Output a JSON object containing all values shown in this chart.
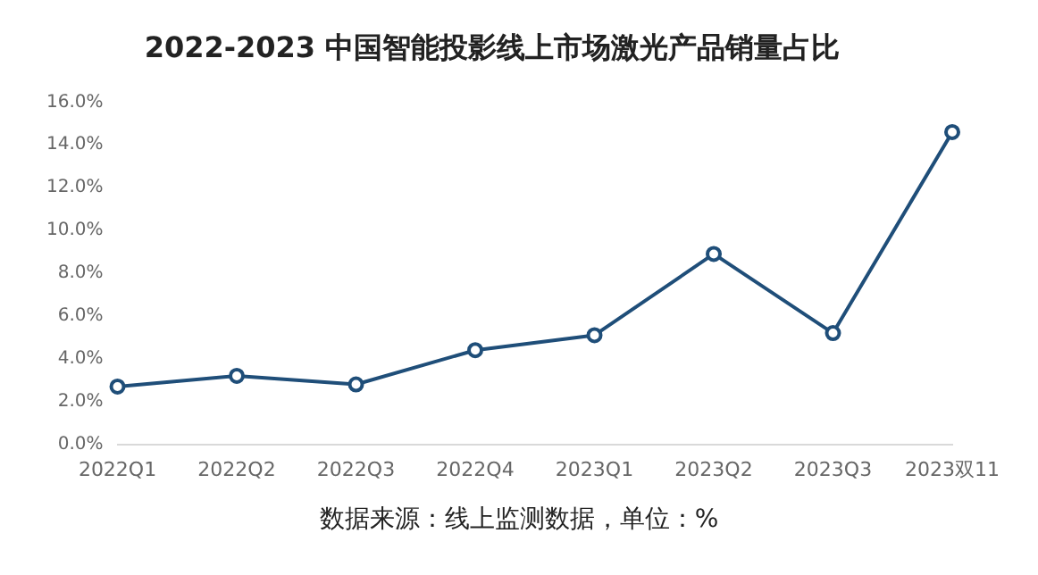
{
  "chart_data": {
    "type": "line",
    "title": "2022-2023 中国智能投影线上市场激光产品销量占比",
    "categories": [
      "2022Q1",
      "2022Q2",
      "2022Q3",
      "2022Q4",
      "2023Q1",
      "2023Q2",
      "2023Q3",
      "2023双11"
    ],
    "series": [
      {
        "color": "#1f4e79",
        "values": [
          2.7,
          3.2,
          2.8,
          4.4,
          5.1,
          8.9,
          5.2,
          14.6
        ]
      }
    ],
    "ylim": [
      0,
      16
    ],
    "yticks": [
      {
        "value": 0,
        "label": "0.0%"
      },
      {
        "value": 2,
        "label": "2.0%"
      },
      {
        "value": 4,
        "label": "4.0%"
      },
      {
        "value": 6,
        "label": "6.0%"
      },
      {
        "value": 8,
        "label": "8.0%"
      },
      {
        "value": 10,
        "label": "10.0%"
      },
      {
        "value": 12,
        "label": "12.0%"
      },
      {
        "value": 14,
        "label": "14.0%"
      },
      {
        "value": 16,
        "label": "16.0%"
      }
    ],
    "grid": false,
    "legend": false,
    "marker": "circle",
    "line_style": "solid",
    "annotations": [
      "数据来源：线上监测数据，单位：%"
    ]
  }
}
